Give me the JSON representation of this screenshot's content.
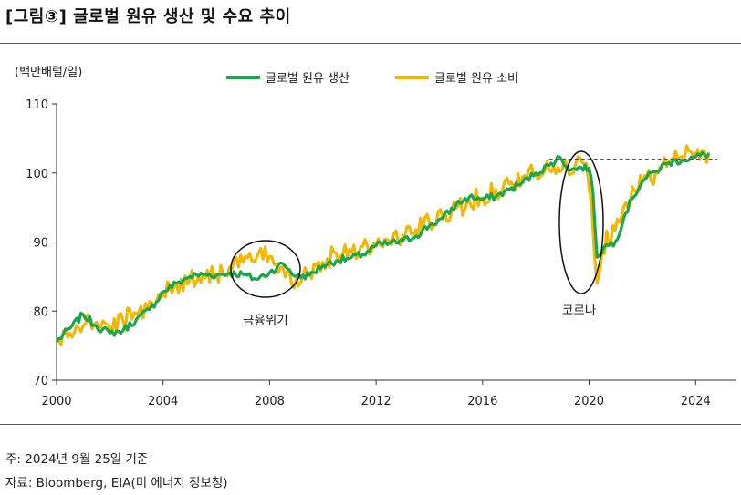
{
  "header": {
    "title": "[그림③] 글로벌 원유 생산 및 수요 추이"
  },
  "footer": {
    "note": "주: 2024년 9월 25일 기준",
    "source": "자료: Bloomberg, EIA(미 에너지 정보청)"
  },
  "colors": {
    "production": "#1aa64b",
    "consumption": "#f2b705",
    "axis": "#333333",
    "reference": "#555555"
  },
  "chart_data": {
    "type": "line",
    "title": "글로벌 원유 생산 및 수요 추이",
    "ylabel": "(백만배럴/일)",
    "xlabel": "",
    "ylim": [
      70,
      110
    ],
    "xlim": [
      2000,
      2025.5
    ],
    "yticks": [
      70,
      80,
      90,
      100,
      110
    ],
    "xticks": [
      2000,
      2004,
      2008,
      2012,
      2016,
      2020,
      2024
    ],
    "legend": {
      "position": "top-center",
      "entries": [
        "글로벌 원유 생산",
        "글로벌 원유 소비"
      ]
    },
    "series": [
      {
        "name": "글로벌 원유 생산",
        "color": "#1aa64b",
        "points": [
          [
            2000,
            75.6
          ],
          [
            2000.5,
            77.5
          ],
          [
            2001,
            79.5
          ],
          [
            2001.5,
            77.8
          ],
          [
            2002,
            76.8
          ],
          [
            2002.5,
            77.2
          ],
          [
            2003,
            78.8
          ],
          [
            2003.5,
            80.2
          ],
          [
            2004,
            82.8
          ],
          [
            2004.5,
            84.0
          ],
          [
            2005,
            85.0
          ],
          [
            2005.5,
            85.3
          ],
          [
            2006,
            85.2
          ],
          [
            2006.5,
            85.5
          ],
          [
            2007,
            85.3
          ],
          [
            2007.5,
            84.6
          ],
          [
            2008,
            85.6
          ],
          [
            2008.5,
            86.9
          ],
          [
            2009,
            85.0
          ],
          [
            2009.5,
            85.2
          ],
          [
            2010,
            86.6
          ],
          [
            2010.5,
            87.3
          ],
          [
            2011,
            87.6
          ],
          [
            2011.5,
            88.2
          ],
          [
            2012,
            89.5
          ],
          [
            2012.5,
            89.8
          ],
          [
            2013,
            90.1
          ],
          [
            2013.5,
            90.9
          ],
          [
            2014,
            92.4
          ],
          [
            2014.5,
            93.4
          ],
          [
            2015,
            95.4
          ],
          [
            2015.5,
            96.5
          ],
          [
            2016,
            96.2
          ],
          [
            2016.5,
            96.6
          ],
          [
            2017,
            97.6
          ],
          [
            2017.5,
            98.6
          ],
          [
            2018,
            100.0
          ],
          [
            2018.5,
            101.1
          ],
          [
            2018.9,
            102.3
          ],
          [
            2019.3,
            100.4
          ],
          [
            2019.7,
            100.8
          ],
          [
            2020,
            100.7
          ],
          [
            2020.15,
            97.0
          ],
          [
            2020.3,
            87.8
          ],
          [
            2020.55,
            89.2
          ],
          [
            2021,
            90.1
          ],
          [
            2021.3,
            93.5
          ],
          [
            2021.6,
            96.2
          ],
          [
            2022,
            98.8
          ],
          [
            2022.5,
            100.3
          ],
          [
            2023,
            101.5
          ],
          [
            2023.5,
            101.9
          ],
          [
            2024,
            102.3
          ],
          [
            2024.5,
            102.8
          ]
        ]
      },
      {
        "name": "글로벌 원유 소비",
        "color": "#f2b705",
        "points": [
          [
            2000,
            75.5
          ],
          [
            2000.5,
            76.8
          ],
          [
            2001,
            77.9
          ],
          [
            2001.5,
            78.4
          ],
          [
            2002,
            77.6
          ],
          [
            2002.5,
            78.6
          ],
          [
            2003,
            79.6
          ],
          [
            2003.5,
            81.4
          ],
          [
            2004,
            82.4
          ],
          [
            2004.5,
            83.8
          ],
          [
            2005,
            84.5
          ],
          [
            2005.5,
            85.4
          ],
          [
            2006,
            85.4
          ],
          [
            2006.5,
            86.4
          ],
          [
            2007,
            87.1
          ],
          [
            2007.5,
            87.6
          ],
          [
            2008,
            87.9
          ],
          [
            2008.5,
            86.4
          ],
          [
            2009,
            84.6
          ],
          [
            2009.5,
            85.6
          ],
          [
            2010,
            87.1
          ],
          [
            2010.5,
            88.4
          ],
          [
            2011,
            88.9
          ],
          [
            2011.5,
            89.4
          ],
          [
            2012,
            89.4
          ],
          [
            2012.5,
            90.2
          ],
          [
            2013,
            90.9
          ],
          [
            2013.5,
            91.8
          ],
          [
            2014,
            92.9
          ],
          [
            2014.5,
            93.4
          ],
          [
            2015,
            94.9
          ],
          [
            2015.5,
            95.9
          ],
          [
            2016,
            96.4
          ],
          [
            2016.5,
            97.6
          ],
          [
            2017,
            98.4
          ],
          [
            2017.5,
            99.4
          ],
          [
            2018,
            99.9
          ],
          [
            2018.5,
            100.4
          ],
          [
            2019,
            100.6
          ],
          [
            2019.5,
            101.4
          ],
          [
            2019.9,
            101.4
          ],
          [
            2020.1,
            95.0
          ],
          [
            2020.3,
            84.0
          ],
          [
            2020.5,
            88.8
          ],
          [
            2020.9,
            92.4
          ],
          [
            2021.3,
            95.1
          ],
          [
            2021.7,
            97.4
          ],
          [
            2022,
            98.6
          ],
          [
            2022.5,
            100.1
          ],
          [
            2023,
            101.6
          ],
          [
            2023.5,
            102.4
          ],
          [
            2024,
            102.7
          ],
          [
            2024.5,
            103.0
          ]
        ]
      }
    ],
    "reference_line": {
      "y": 102,
      "x_from": 2018.5,
      "x_to": 2025.5,
      "style": "dashed"
    },
    "annotations": [
      {
        "label": "금융위기",
        "x": 2008,
        "y": 86.5
      },
      {
        "label": "코로나",
        "x": 2020.1,
        "y": 93.0
      }
    ]
  }
}
